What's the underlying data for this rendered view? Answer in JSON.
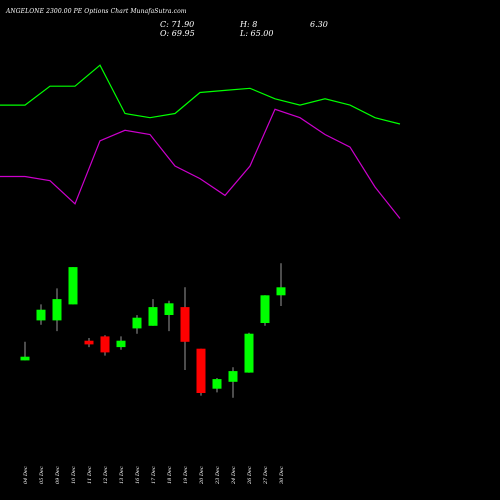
{
  "header": {
    "symbol": "ANGELONE 2300.00 PE Options",
    "site": "Chart MunafaSutra.com",
    "close": "C: 71.90",
    "high": "H: 8",
    "extra": "6.30",
    "open": "O: 69.95",
    "low": "L: 65.00"
  },
  "chart_data": {
    "type": "candlestick",
    "dates": [
      "04 Dec",
      "05 Dec",
      "09 Dec",
      "10 Dec",
      "11 Dec",
      "12 Dec",
      "13 Dec",
      "16 Dec",
      "17 Dec",
      "18 Dec",
      "19 Dec",
      "20 Dec",
      "23 Dec",
      "24 Dec",
      "26 Dec",
      "27 Dec",
      "30 Dec"
    ],
    "candles": [
      {
        "open": 67.3,
        "high": 70.8,
        "low": 67.3,
        "close": 68.0
      },
      {
        "open": 74.8,
        "high": 77.8,
        "low": 74.0,
        "close": 76.8
      },
      {
        "open": 74.8,
        "high": 80.8,
        "low": 72.8,
        "close": 78.8
      },
      {
        "open": 77.8,
        "high": 84.8,
        "low": 77.8,
        "close": 84.8
      },
      {
        "open": 71.0,
        "high": 71.5,
        "low": 69.8,
        "close": 70.3
      },
      {
        "open": 71.8,
        "high": 72.0,
        "low": 68.2,
        "close": 68.8
      },
      {
        "open": 69.8,
        "high": 71.8,
        "low": 69.3,
        "close": 71.0
      },
      {
        "open": 73.3,
        "high": 75.8,
        "low": 72.3,
        "close": 75.3
      },
      {
        "open": 73.8,
        "high": 78.8,
        "low": 73.8,
        "close": 77.3
      },
      {
        "open": 75.8,
        "high": 78.5,
        "low": 72.8,
        "close": 78.0
      },
      {
        "open": 77.3,
        "high": 81.0,
        "low": 65.5,
        "close": 70.8
      },
      {
        "open": 69.5,
        "high": 69.5,
        "low": 60.7,
        "close": 61.2
      },
      {
        "open": 62.0,
        "high": 64.0,
        "low": 61.3,
        "close": 63.8
      },
      {
        "open": 63.3,
        "high": 66.0,
        "low": 60.3,
        "close": 65.3
      },
      {
        "open": 65.0,
        "high": 72.5,
        "low": 65.0,
        "close": 72.3
      },
      {
        "open": 74.3,
        "high": 79.5,
        "low": 73.8,
        "close": 79.5
      },
      {
        "open": 79.5,
        "high": 85.5,
        "low": 77.5,
        "close": 81.0
      }
    ],
    "indicators": [
      {
        "color": "#00ff00",
        "values": [
          69,
          69,
          78,
          78,
          88,
          65,
          63,
          65,
          75,
          76,
          77,
          72,
          69,
          72,
          69,
          63,
          60
        ]
      },
      {
        "color": "#cc00cc",
        "values": [
          35,
          35,
          33,
          22,
          52,
          57,
          55,
          40,
          34,
          26,
          40,
          67,
          63,
          55,
          49,
          30,
          15
        ]
      }
    ],
    "colors": {
      "up": "#00ff00",
      "down": "#ff0000",
      "wick": "#999999",
      "background": "#000000"
    }
  }
}
